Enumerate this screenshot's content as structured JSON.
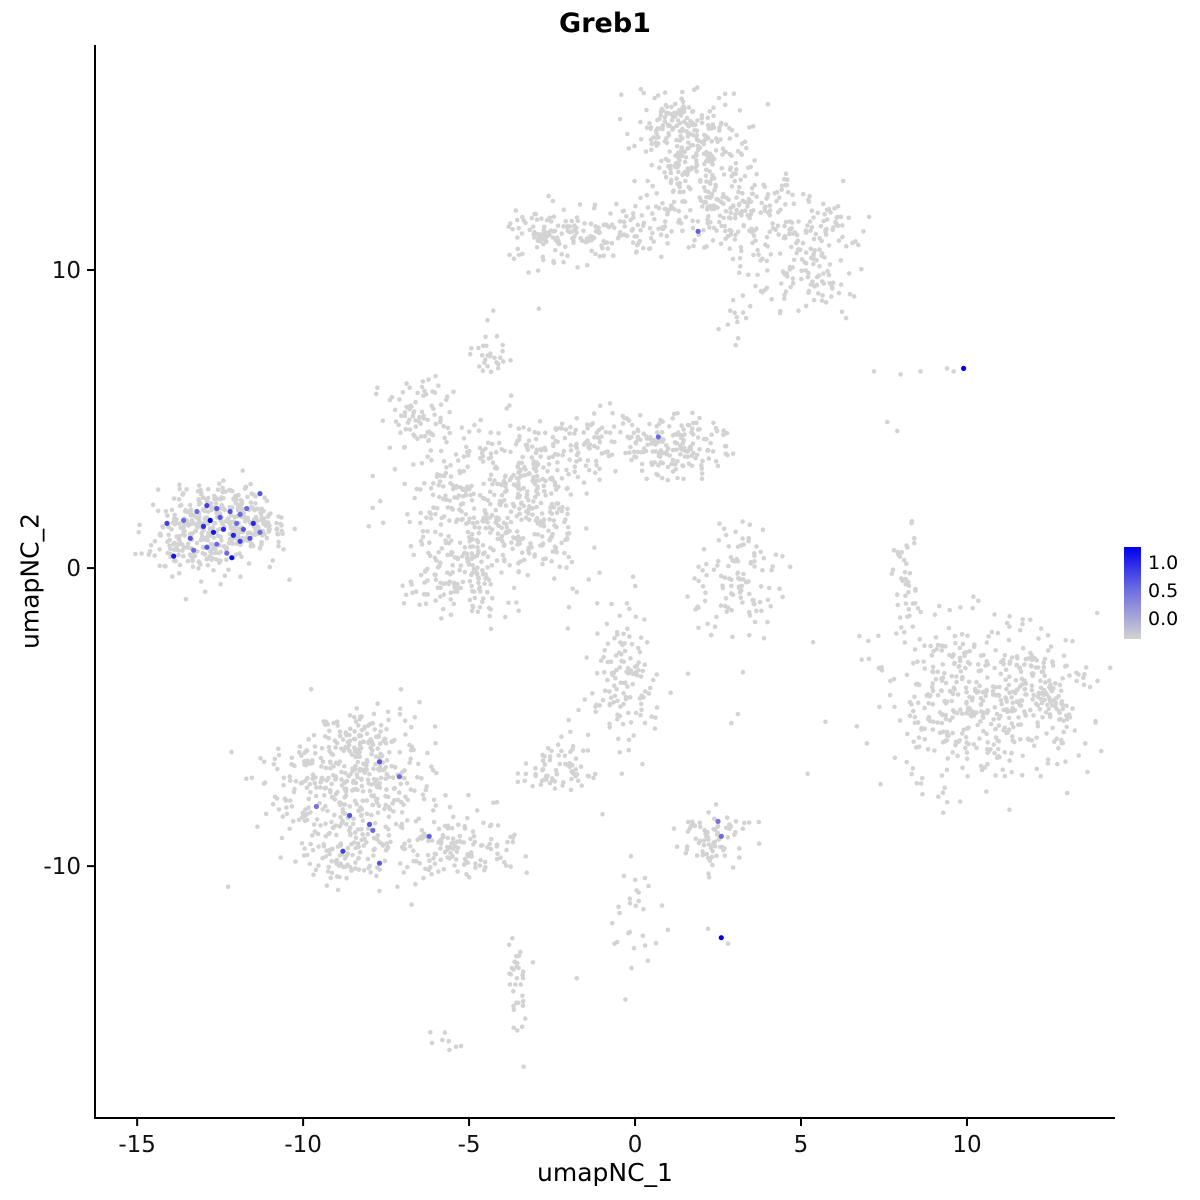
{
  "title": "Greb1",
  "axes": {
    "x": {
      "label": "umapNC_1",
      "ticks": [
        -15,
        -10,
        -5,
        0,
        5,
        10
      ],
      "range": [
        -16.27,
        14.46
      ]
    },
    "y": {
      "label": "umapNC_2",
      "ticks": [
        10,
        0,
        -10
      ],
      "range": [
        -18.45,
        17.55
      ]
    }
  },
  "legend": {
    "labels": [
      "1.0",
      "0.5",
      "0.0"
    ],
    "high_color": "#0000EE",
    "low_color": "#D3D3D3"
  },
  "chart_data": {
    "type": "scatter",
    "title": "Greb1",
    "xlabel": "umapNC_1",
    "ylabel": "umapNC_2",
    "xlim": [
      -16.27,
      14.46
    ],
    "ylim": [
      -18.45,
      17.55
    ],
    "x_ticks": [
      -15,
      -10,
      -5,
      0,
      5,
      10
    ],
    "y_ticks": [
      10,
      0,
      -10
    ],
    "grid": false,
    "legend_position": "right",
    "color_scale": {
      "low": "#D3D3D3",
      "high": "#0000EE",
      "ticks": [
        "1.0",
        "0.5",
        "0.0"
      ]
    },
    "point_radius_px": 2.3,
    "clusters": [
      {
        "name": "left-main",
        "cx": -12.9,
        "cy": 1.25,
        "sx": 0.95,
        "sy": 0.7,
        "n": 330
      },
      {
        "name": "left-tip",
        "cx": -11.5,
        "cy": 1.45,
        "sx": 0.45,
        "sy": 0.45,
        "n": 70
      },
      {
        "name": "left-top-edge",
        "cx": -12.4,
        "cy": 2.2,
        "sx": 0.6,
        "sy": 0.3,
        "n": 40
      },
      {
        "name": "top-main",
        "cx": 1.7,
        "cy": 13.9,
        "sx": 0.85,
        "sy": 1.0,
        "n": 260
      },
      {
        "name": "top-apex",
        "cx": 1.2,
        "cy": 15.2,
        "sx": 0.5,
        "sy": 0.4,
        "n": 50
      },
      {
        "name": "top-right-arm",
        "cx": 3.9,
        "cy": 11.6,
        "sx": 0.9,
        "sy": 0.9,
        "n": 150
      },
      {
        "name": "top-right-lower",
        "cx": 5.3,
        "cy": 9.9,
        "sx": 0.65,
        "sy": 0.75,
        "n": 85
      },
      {
        "name": "top-right-tip",
        "cx": 6.0,
        "cy": 11.4,
        "sx": 0.4,
        "sy": 0.5,
        "n": 35
      },
      {
        "name": "top-left-band",
        "cx": -0.9,
        "cy": 11.2,
        "sx": 1.5,
        "sy": 0.45,
        "n": 150
      },
      {
        "name": "top-left-end",
        "cx": -2.8,
        "cy": 11.2,
        "sx": 0.45,
        "sy": 0.55,
        "n": 55
      },
      {
        "name": "top-bridge",
        "cx": 2.3,
        "cy": 12.1,
        "sx": 0.8,
        "sy": 0.5,
        "n": 55
      },
      {
        "name": "top-south-spur",
        "cx": 3.2,
        "cy": 8.5,
        "sx": 0.35,
        "sy": 0.4,
        "n": 14
      },
      {
        "name": "central-main",
        "cx": -4.6,
        "cy": 1.9,
        "sx": 1.2,
        "sy": 1.4,
        "n": 380
      },
      {
        "name": "central-lower",
        "cx": -5.3,
        "cy": -0.4,
        "sx": 0.8,
        "sy": 0.55,
        "n": 90
      },
      {
        "name": "central-upper-left",
        "cx": -6.4,
        "cy": 5.1,
        "sx": 0.55,
        "sy": 0.65,
        "n": 80
      },
      {
        "name": "central-north-islet",
        "cx": -4.5,
        "cy": 7.2,
        "sx": 0.3,
        "sy": 0.5,
        "n": 28
      },
      {
        "name": "central-right-band",
        "cx": -1.2,
        "cy": 4.1,
        "sx": 1.3,
        "sy": 0.5,
        "n": 140
      },
      {
        "name": "central-right-clump",
        "cx": 1.3,
        "cy": 4.1,
        "sx": 0.75,
        "sy": 0.55,
        "n": 130
      },
      {
        "name": "central-streak",
        "cx": -2.6,
        "cy": 1.2,
        "sx": 0.6,
        "sy": 0.9,
        "n": 55
      },
      {
        "name": "central-bridge",
        "cx": -3.2,
        "cy": 3.1,
        "sx": 0.6,
        "sy": 0.6,
        "n": 70
      },
      {
        "name": "mid-crescent",
        "cx": 3.1,
        "cy": -0.3,
        "sx": 0.8,
        "sy": 1.0,
        "n": 110
      },
      {
        "name": "right-arc",
        "cx": 8.1,
        "cy": -0.2,
        "sx": 0.22,
        "sy": 0.95,
        "n": 40
      },
      {
        "name": "far-right-main",
        "cx": 10.6,
        "cy": -4.6,
        "sx": 1.55,
        "sy": 1.35,
        "n": 420
      },
      {
        "name": "far-right-east",
        "cx": 12.2,
        "cy": -4.2,
        "sx": 0.65,
        "sy": 0.8,
        "n": 80
      },
      {
        "name": "far-right-west",
        "cx": 8.7,
        "cy": -3.6,
        "sx": 0.5,
        "sy": 0.9,
        "n": 40
      },
      {
        "name": "bottom-left-main",
        "cx": -8.5,
        "cy": -7.3,
        "sx": 1.25,
        "sy": 1.05,
        "n": 380
      },
      {
        "name": "bottom-left-tail",
        "cx": -5.6,
        "cy": -9.3,
        "sx": 0.95,
        "sy": 0.6,
        "n": 140
      },
      {
        "name": "bottom-left-top-arm",
        "cx": -8.2,
        "cy": -5.4,
        "sx": 0.8,
        "sy": 0.4,
        "n": 70
      },
      {
        "name": "bottom-left-south",
        "cx": -8.6,
        "cy": -9.6,
        "sx": 0.85,
        "sy": 0.5,
        "n": 90
      },
      {
        "name": "bottom-center-column",
        "cx": -0.3,
        "cy": -3.8,
        "sx": 0.55,
        "sy": 1.2,
        "n": 130
      },
      {
        "name": "bottom-center-islet",
        "cx": -2.3,
        "cy": -6.8,
        "sx": 0.55,
        "sy": 0.5,
        "n": 70
      },
      {
        "name": "bottom-small-cluster",
        "cx": 2.4,
        "cy": -9.1,
        "sx": 0.6,
        "sy": 0.5,
        "n": 80
      },
      {
        "name": "bottom-sparse-column",
        "cx": -0.2,
        "cy": -11.8,
        "sx": 0.5,
        "sy": 0.9,
        "n": 28
      },
      {
        "name": "bottom-streak",
        "cx": -3.5,
        "cy": -14.2,
        "sx": 0.18,
        "sy": 1.0,
        "n": 34
      },
      {
        "name": "bottom-tiny",
        "cx": -6.0,
        "cy": -15.9,
        "sx": 0.35,
        "sy": 0.15,
        "n": 8
      }
    ],
    "singles": [
      [
        7.2,
        6.6
      ],
      [
        8.0,
        6.5
      ],
      [
        8.6,
        6.6
      ],
      [
        9.4,
        6.7
      ],
      [
        9.6,
        6.6
      ],
      [
        7.6,
        4.9
      ],
      [
        7.9,
        4.6
      ],
      [
        5.2,
        -6.9
      ],
      [
        2.9,
        -5.2
      ],
      [
        3.1,
        -4.9
      ],
      [
        -2.9,
        8.7
      ],
      [
        2.2,
        -12.1
      ],
      [
        2.8,
        -12.6
      ],
      [
        0.3,
        -10.4
      ]
    ],
    "expressing_points": [
      [
        -14.1,
        1.5,
        0.7
      ],
      [
        -13.9,
        0.4,
        0.9
      ],
      [
        -13.6,
        1.6,
        0.5
      ],
      [
        -13.4,
        1.0,
        0.6
      ],
      [
        -13.2,
        1.9,
        0.5
      ],
      [
        -13.3,
        0.6,
        0.5
      ],
      [
        -13.0,
        1.4,
        0.8
      ],
      [
        -12.9,
        0.7,
        0.6
      ],
      [
        -12.9,
        2.1,
        0.7
      ],
      [
        -12.8,
        1.6,
        1.0
      ],
      [
        -12.7,
        1.2,
        0.9
      ],
      [
        -12.6,
        0.8,
        0.5
      ],
      [
        -12.6,
        2.0,
        0.6
      ],
      [
        -12.5,
        1.7,
        0.6
      ],
      [
        -12.4,
        1.3,
        0.8
      ],
      [
        -12.3,
        0.5,
        0.5
      ],
      [
        -12.2,
        1.9,
        0.6
      ],
      [
        -12.15,
        0.35,
        0.95
      ],
      [
        -12.1,
        1.1,
        0.85
      ],
      [
        -12.0,
        1.5,
        0.5
      ],
      [
        -11.9,
        0.9,
        0.7
      ],
      [
        -11.9,
        1.8,
        0.5
      ],
      [
        -11.8,
        1.3,
        0.6
      ],
      [
        -11.7,
        2.0,
        0.5
      ],
      [
        -11.6,
        1.0,
        0.6
      ],
      [
        -11.5,
        1.5,
        0.8
      ],
      [
        -11.3,
        2.5,
        0.6
      ],
      [
        -11.3,
        1.2,
        0.5
      ],
      [
        1.9,
        11.3,
        0.55
      ],
      [
        0.7,
        4.4,
        0.5
      ],
      [
        9.9,
        6.7,
        1.0
      ],
      [
        -7.7,
        -6.5,
        0.6
      ],
      [
        -7.1,
        -7.0,
        0.5
      ],
      [
        -9.6,
        -8.0,
        0.45
      ],
      [
        -8.6,
        -8.3,
        0.6
      ],
      [
        -8.0,
        -8.6,
        0.6
      ],
      [
        -7.9,
        -8.8,
        0.5
      ],
      [
        -6.2,
        -9.0,
        0.55
      ],
      [
        -8.8,
        -9.5,
        0.7
      ],
      [
        -7.7,
        -9.9,
        0.6
      ],
      [
        2.5,
        -8.5,
        0.45
      ],
      [
        2.6,
        -9.0,
        0.5
      ],
      [
        2.6,
        -12.4,
        1.0
      ]
    ]
  }
}
